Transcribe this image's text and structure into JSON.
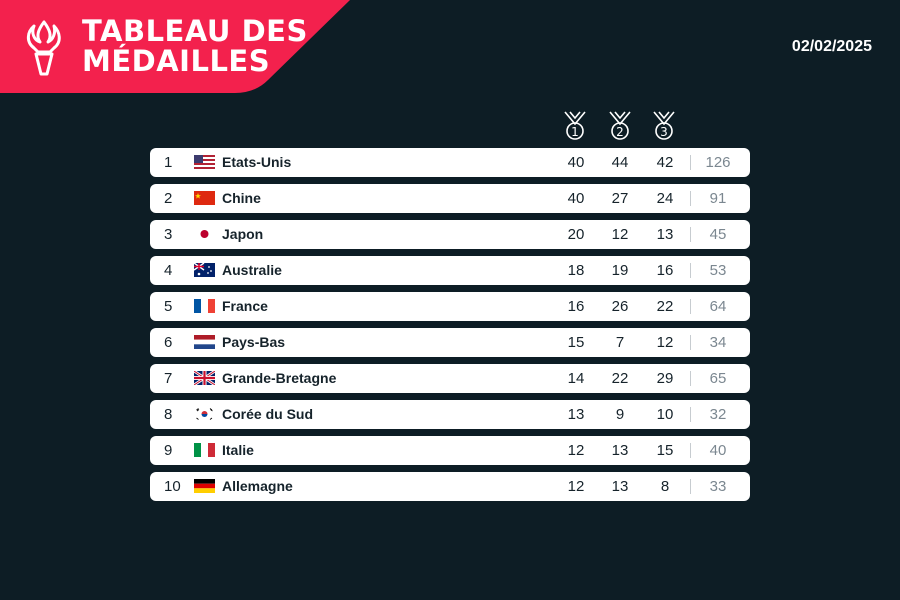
{
  "header": {
    "title_line1": "TABLEAU DES",
    "title_line2": "MÉDAILLES",
    "date": "02/02/2025",
    "accent_color": "#f3214d"
  },
  "columns": {
    "gold_label": "1",
    "silver_label": "2",
    "bronze_label": "3"
  },
  "rows": [
    {
      "rank": "1",
      "country": "Etats-Unis",
      "flag": "usa-flag-icon",
      "gold": "40",
      "silver": "44",
      "bronze": "42",
      "total": "126"
    },
    {
      "rank": "2",
      "country": "Chine",
      "flag": "china-flag-icon",
      "gold": "40",
      "silver": "27",
      "bronze": "24",
      "total": "91"
    },
    {
      "rank": "3",
      "country": "Japon",
      "flag": "japan-flag-icon",
      "gold": "20",
      "silver": "12",
      "bronze": "13",
      "total": "45"
    },
    {
      "rank": "4",
      "country": "Australie",
      "flag": "australia-flag-icon",
      "gold": "18",
      "silver": "19",
      "bronze": "16",
      "total": "53"
    },
    {
      "rank": "5",
      "country": "France",
      "flag": "france-flag-icon",
      "gold": "16",
      "silver": "26",
      "bronze": "22",
      "total": "64"
    },
    {
      "rank": "6",
      "country": "Pays-Bas",
      "flag": "netherlands-flag-icon",
      "gold": "15",
      "silver": "7",
      "bronze": "12",
      "total": "34"
    },
    {
      "rank": "7",
      "country": "Grande-Bretagne",
      "flag": "uk-flag-icon",
      "gold": "14",
      "silver": "22",
      "bronze": "29",
      "total": "65"
    },
    {
      "rank": "8",
      "country": "Corée du Sud",
      "flag": "south-korea-flag-icon",
      "gold": "13",
      "silver": "9",
      "bronze": "10",
      "total": "32"
    },
    {
      "rank": "9",
      "country": "Italie",
      "flag": "italy-flag-icon",
      "gold": "12",
      "silver": "13",
      "bronze": "15",
      "total": "40"
    },
    {
      "rank": "10",
      "country": "Allemagne",
      "flag": "germany-flag-icon",
      "gold": "12",
      "silver": "13",
      "bronze": "8",
      "total": "33"
    }
  ]
}
